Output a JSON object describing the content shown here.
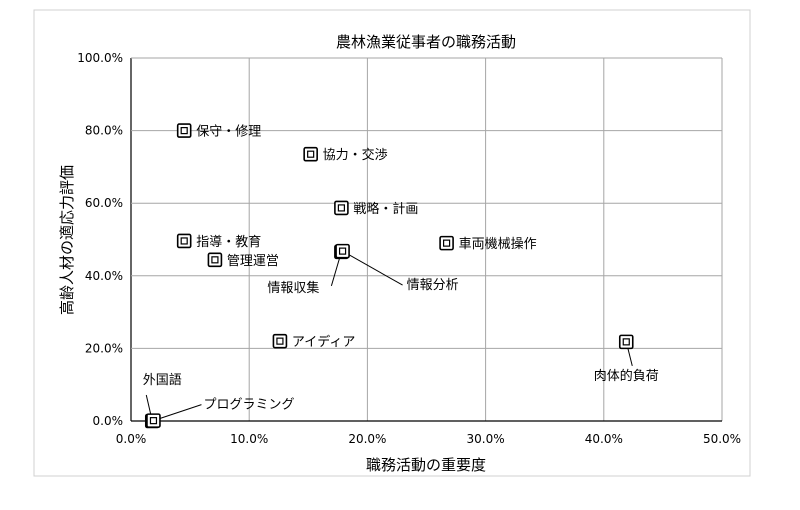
{
  "chart_data": {
    "type": "scatter",
    "title": "農林漁業従事者の職務活動",
    "xlabel": "職務活動の重要度",
    "ylabel": "高齢人材の適応力評価",
    "xlim": [
      0,
      50
    ],
    "ylim": [
      0,
      100
    ],
    "x_ticks": [
      "0.0%",
      "10.0%",
      "20.0%",
      "30.0%",
      "40.0%",
      "50.0%"
    ],
    "y_ticks": [
      "0.0%",
      "20.0%",
      "40.0%",
      "60.0%",
      "80.0%",
      "100.0%"
    ],
    "grid": true,
    "legend": "none",
    "marker_color": "#000000",
    "points": [
      {
        "label": "保守・修理",
        "x": 4.5,
        "y": 80.0
      },
      {
        "label": "協力・交渉",
        "x": 15.2,
        "y": 73.5
      },
      {
        "label": "戦略・計画",
        "x": 17.8,
        "y": 58.7
      },
      {
        "label": "指導・教育",
        "x": 4.5,
        "y": 49.6
      },
      {
        "label": "管理運営",
        "x": 7.1,
        "y": 44.4
      },
      {
        "label": "情報収集",
        "x": 17.8,
        "y": 46.6
      },
      {
        "label": "情報分析",
        "x": 17.9,
        "y": 46.8
      },
      {
        "label": "車両機械操作",
        "x": 26.7,
        "y": 49.0
      },
      {
        "label": "アイディア",
        "x": 12.6,
        "y": 22.0
      },
      {
        "label": "肉体的負荷",
        "x": 41.9,
        "y": 21.8
      },
      {
        "label": "外国語",
        "x": 1.8,
        "y": 0.0
      },
      {
        "label": "プログラミング",
        "x": 1.9,
        "y": 0.1
      }
    ]
  }
}
